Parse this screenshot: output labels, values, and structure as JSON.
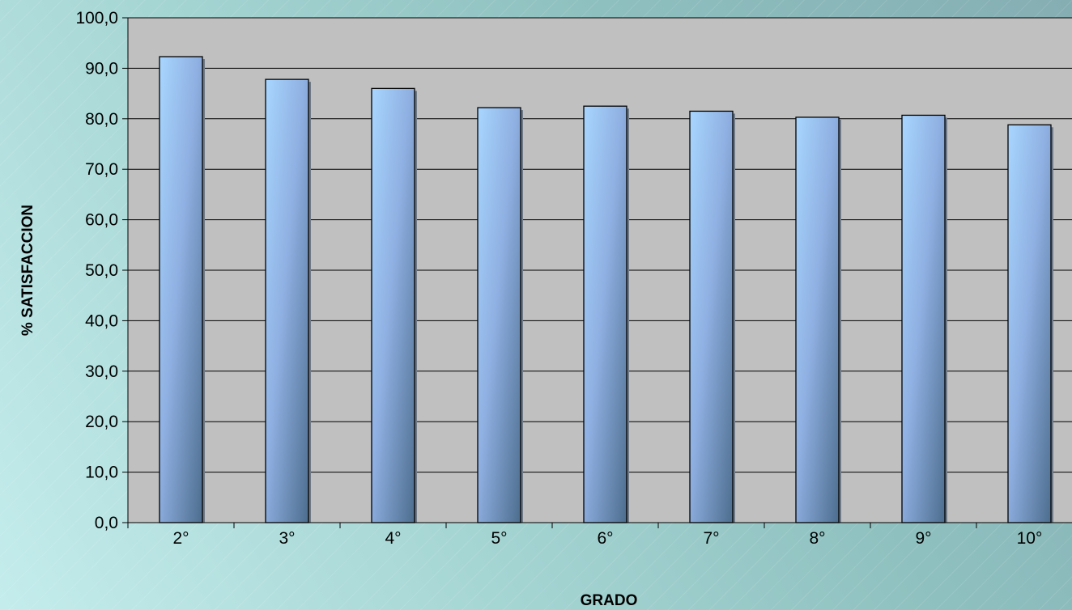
{
  "chart_data": {
    "type": "bar",
    "title": "",
    "xlabel": "GRADO",
    "ylabel": "% SATISFACCION",
    "categories": [
      "2°",
      "3°",
      "4°",
      "5°",
      "6°",
      "7°",
      "8°",
      "9°",
      "10°"
    ],
    "values": [
      92.3,
      87.8,
      86.0,
      82.2,
      82.5,
      81.5,
      80.3,
      80.7,
      78.8
    ],
    "ylim": [
      0,
      100
    ],
    "yticks": [
      "0,0",
      "10,0",
      "20,0",
      "30,0",
      "40,0",
      "50,0",
      "60,0",
      "70,0",
      "80,0",
      "90,0",
      "100,0"
    ],
    "grid": true,
    "legend": "none",
    "colors": {
      "plot_background": "#c0c0c0",
      "bar_light": "#a6d4ff",
      "bar_mid": "#8fb2e4",
      "bar_dark": "#4f6f92",
      "gridline": "#000000"
    }
  }
}
